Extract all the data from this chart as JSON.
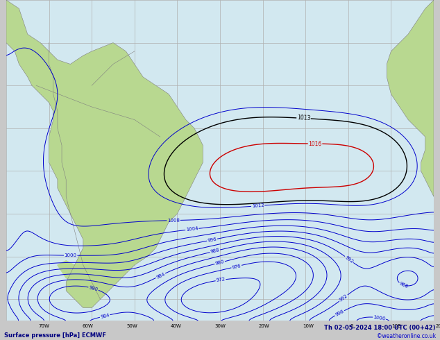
{
  "title_left": "Surface pressure [hPa] ECMWF",
  "title_right": "Th 02-05-2024 18:00 UTC (00+42)",
  "credit": "©weatheronline.co.uk",
  "figsize": [
    6.34,
    4.9
  ],
  "dpi": 100,
  "ocean_color": "#d2e8f0",
  "land_color": "#b8d890",
  "land_border_color": "#808080",
  "grid_color": "#b0b0b0",
  "blue_color": "#0000cc",
  "black_color": "#000000",
  "red_color": "#cc0000",
  "bar_color": "#c8c8c8",
  "title_color": "#000080",
  "credit_color": "#0000cc",
  "lon_min": -80,
  "lon_max": 20,
  "lat_min": -65,
  "lat_max": 10
}
